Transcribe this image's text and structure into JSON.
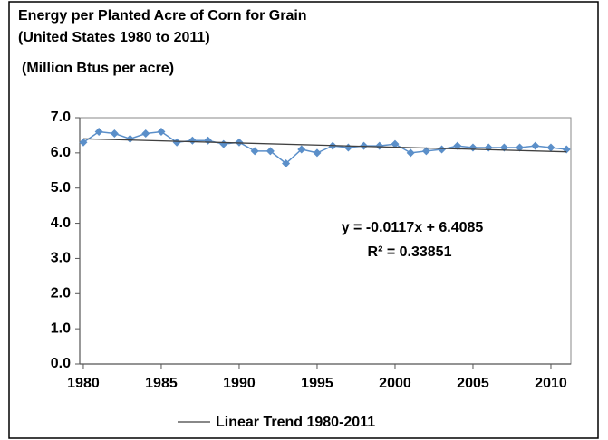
{
  "chart_data": {
    "type": "line",
    "title": "Energy per Planted Acre of Corn for Grain",
    "subtitle": "(United States 1980 to 2011)",
    "y_label": "(Million Btus per acre)",
    "x": [
      1980,
      1981,
      1982,
      1983,
      1984,
      1985,
      1986,
      1987,
      1988,
      1989,
      1990,
      1991,
      1992,
      1993,
      1994,
      1995,
      1996,
      1997,
      1998,
      1999,
      2000,
      2001,
      2002,
      2003,
      2004,
      2005,
      2006,
      2007,
      2008,
      2009,
      2010,
      2011
    ],
    "series": [
      {
        "color": "#5b8fc9",
        "marker": "diamond",
        "values": [
          6.3,
          6.6,
          6.55,
          6.4,
          6.55,
          6.6,
          6.3,
          6.35,
          6.35,
          6.25,
          6.3,
          6.05,
          6.05,
          5.7,
          6.1,
          6.0,
          6.2,
          6.15,
          6.2,
          6.2,
          6.25,
          6.0,
          6.05,
          6.1,
          6.2,
          6.15,
          6.15,
          6.15,
          6.15,
          6.2,
          6.15,
          6.1
        ]
      },
      {
        "name": "Linear Trend 1980-2011",
        "color": "#404040",
        "x": [
          1980,
          2011
        ],
        "values": [
          6.4,
          6.03
        ]
      }
    ],
    "annotations": [
      "y = -0.0117x + 6.4085",
      "R² = 0.33851"
    ],
    "xlim": [
      1979.77,
      2011.28
    ],
    "xticks": [
      1980,
      1985,
      1990,
      1995,
      2000,
      2005,
      2010
    ],
    "ylim": [
      0,
      7
    ],
    "yticks": [
      {
        "value": 0,
        "label": "0.0"
      },
      {
        "value": 1,
        "label": "1.0"
      },
      {
        "value": 2,
        "label": "2.0"
      },
      {
        "value": 3,
        "label": "3.0"
      },
      {
        "value": 4,
        "label": "4.0"
      },
      {
        "value": 5,
        "label": "5.0"
      },
      {
        "value": 6,
        "label": "6.0"
      },
      {
        "value": 7,
        "label": "7.0"
      }
    ],
    "grid": false,
    "legend": "bottom"
  }
}
